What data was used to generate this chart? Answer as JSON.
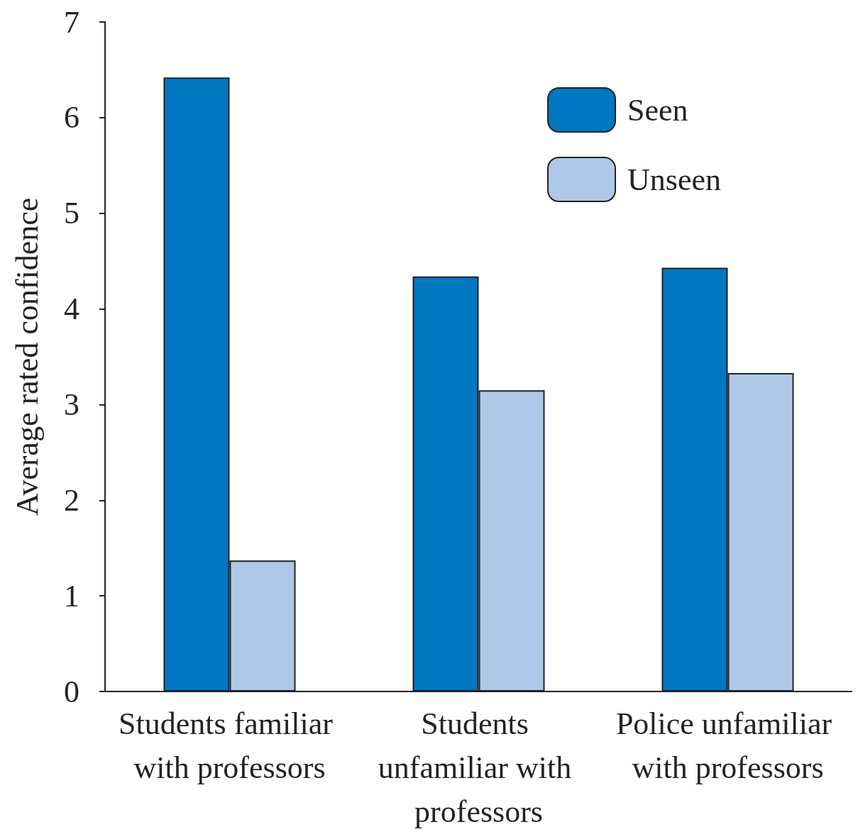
{
  "chart_data": {
    "type": "bar",
    "ylabel": "Average rated confidence",
    "categories": [
      "Students familiar with professors",
      "Students unfamiliar with professors",
      "Police unfamiliar with professors"
    ],
    "series": [
      {
        "name": "Seen",
        "color": "#0077c0",
        "values": [
          6.42,
          4.34,
          4.43
        ]
      },
      {
        "name": "Unseen",
        "color": "#aec8e8",
        "values": [
          1.37,
          3.15,
          3.33
        ]
      }
    ],
    "ylim": [
      0,
      7
    ],
    "yticks": [
      0,
      1,
      2,
      3,
      4,
      5,
      6,
      7
    ],
    "grid": false,
    "legend": "top right"
  }
}
